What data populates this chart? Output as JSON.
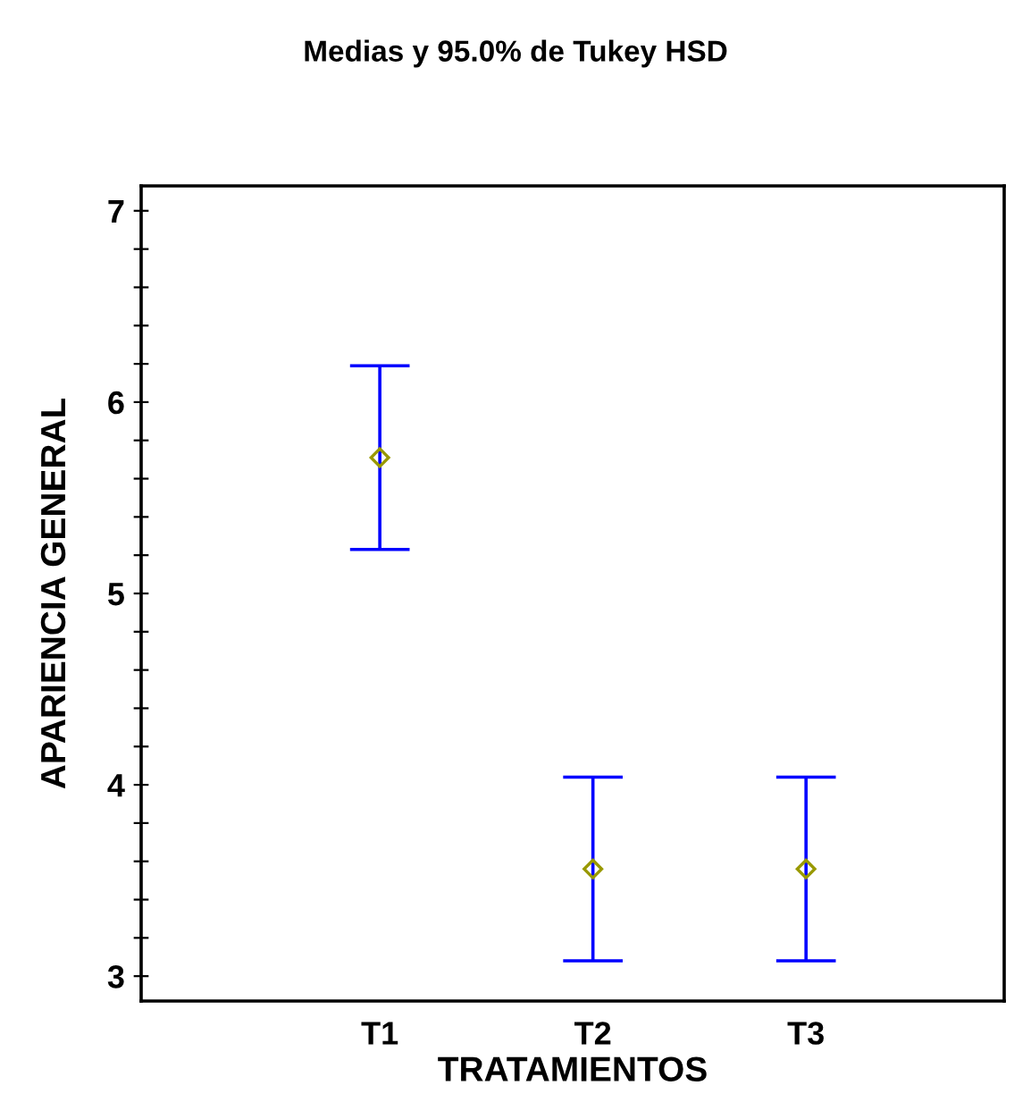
{
  "chart_data": {
    "type": "scatter",
    "title": "Medias y 95.0% de Tukey HSD",
    "xlabel": "TRATAMIENTOS",
    "ylabel": "APARIENCIA GENERAL",
    "categories": [
      "T1",
      "T2",
      "T3"
    ],
    "series": [
      {
        "color": "#0000ff",
        "colors": [
          "#999900",
          "#999900",
          "#999900"
        ],
        "values": [
          5.71,
          3.56,
          3.56
        ],
        "errors": [
          [
            5.23,
            6.19
          ],
          [
            3.08,
            4.04
          ],
          [
            3.08,
            4.04
          ]
        ]
      }
    ],
    "marker": "diamond",
    "ylim": [
      2.87,
      7.13
    ],
    "yticks": [
      3,
      {
        "value": 3.2,
        "label": null
      },
      {
        "value": 3.4,
        "label": null
      },
      {
        "value": 3.6,
        "label": null
      },
      {
        "value": 3.8,
        "label": null
      },
      4,
      {
        "value": 4.2,
        "label": null
      },
      {
        "value": 4.4,
        "label": null
      },
      {
        "value": 4.6,
        "label": null
      },
      {
        "value": 4.8,
        "label": null
      },
      5,
      {
        "value": 5.2,
        "label": null
      },
      {
        "value": 5.4,
        "label": null
      },
      {
        "value": 5.6,
        "label": null
      },
      {
        "value": 5.8,
        "label": null
      },
      6,
      {
        "value": 6.2,
        "label": null
      },
      {
        "value": 6.4,
        "label": null
      },
      {
        "value": 6.6,
        "label": null
      },
      {
        "value": 6.8,
        "label": null
      },
      7
    ],
    "grid": false,
    "legend": false
  }
}
